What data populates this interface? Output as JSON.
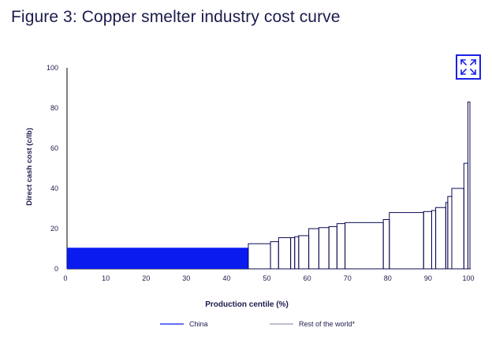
{
  "header": {
    "title": "Figure 3: Copper smelter industry cost curve"
  },
  "toolbar": {
    "expand_icon": "expand-arrows-icon"
  },
  "colors": {
    "china": "#0a1bf0",
    "rest_of_world": "#0b0b52",
    "text": "#1b1b4d",
    "axis": "#000000"
  },
  "chart_data": {
    "type": "bar",
    "subtype": "cost-curve",
    "xlabel": "Production centile (%)",
    "ylabel": "Direct cash cost (c/lb)",
    "xlim": [
      0,
      100
    ],
    "ylim": [
      0,
      100
    ],
    "xticks": [
      0,
      10,
      20,
      30,
      40,
      50,
      60,
      70,
      80,
      90,
      100
    ],
    "yticks": [
      0,
      20,
      40,
      60,
      80,
      100
    ],
    "grid": false,
    "legend_position": "bottom",
    "series": [
      {
        "name": "China",
        "color": "#0a1bf0",
        "filled": true,
        "segments": [
          {
            "x0": 0,
            "x1": 45,
            "value": 10.5
          }
        ]
      },
      {
        "name": "Rest of the world*",
        "color": "#0b0b52",
        "filled": false,
        "segments": [
          {
            "x0": 45,
            "x1": 50.5,
            "value": 12.5
          },
          {
            "x0": 50.5,
            "x1": 52.5,
            "value": 13.5
          },
          {
            "x0": 52.5,
            "x1": 55.5,
            "value": 15.5
          },
          {
            "x0": 55.5,
            "x1": 56.5,
            "value": 15.5
          },
          {
            "x0": 56.5,
            "x1": 57.5,
            "value": 16
          },
          {
            "x0": 57.5,
            "x1": 60,
            "value": 16.5
          },
          {
            "x0": 60,
            "x1": 62.5,
            "value": 20
          },
          {
            "x0": 62.5,
            "x1": 65,
            "value": 20.5
          },
          {
            "x0": 65,
            "x1": 67,
            "value": 21
          },
          {
            "x0": 67,
            "x1": 69,
            "value": 22.5
          },
          {
            "x0": 69,
            "x1": 78.5,
            "value": 23
          },
          {
            "x0": 78.5,
            "x1": 80,
            "value": 24.5
          },
          {
            "x0": 80,
            "x1": 88.5,
            "value": 28
          },
          {
            "x0": 88.5,
            "x1": 90.5,
            "value": 28.5
          },
          {
            "x0": 90.5,
            "x1": 91.5,
            "value": 29
          },
          {
            "x0": 91.5,
            "x1": 94,
            "value": 30.5
          },
          {
            "x0": 94,
            "x1": 94.5,
            "value": 33
          },
          {
            "x0": 94.5,
            "x1": 95.5,
            "value": 36
          },
          {
            "x0": 95.5,
            "x1": 98.5,
            "value": 40
          },
          {
            "x0": 98.5,
            "x1": 99.5,
            "value": 52.5
          },
          {
            "x0": 99.5,
            "x1": 100,
            "value": 83
          }
        ]
      }
    ]
  }
}
